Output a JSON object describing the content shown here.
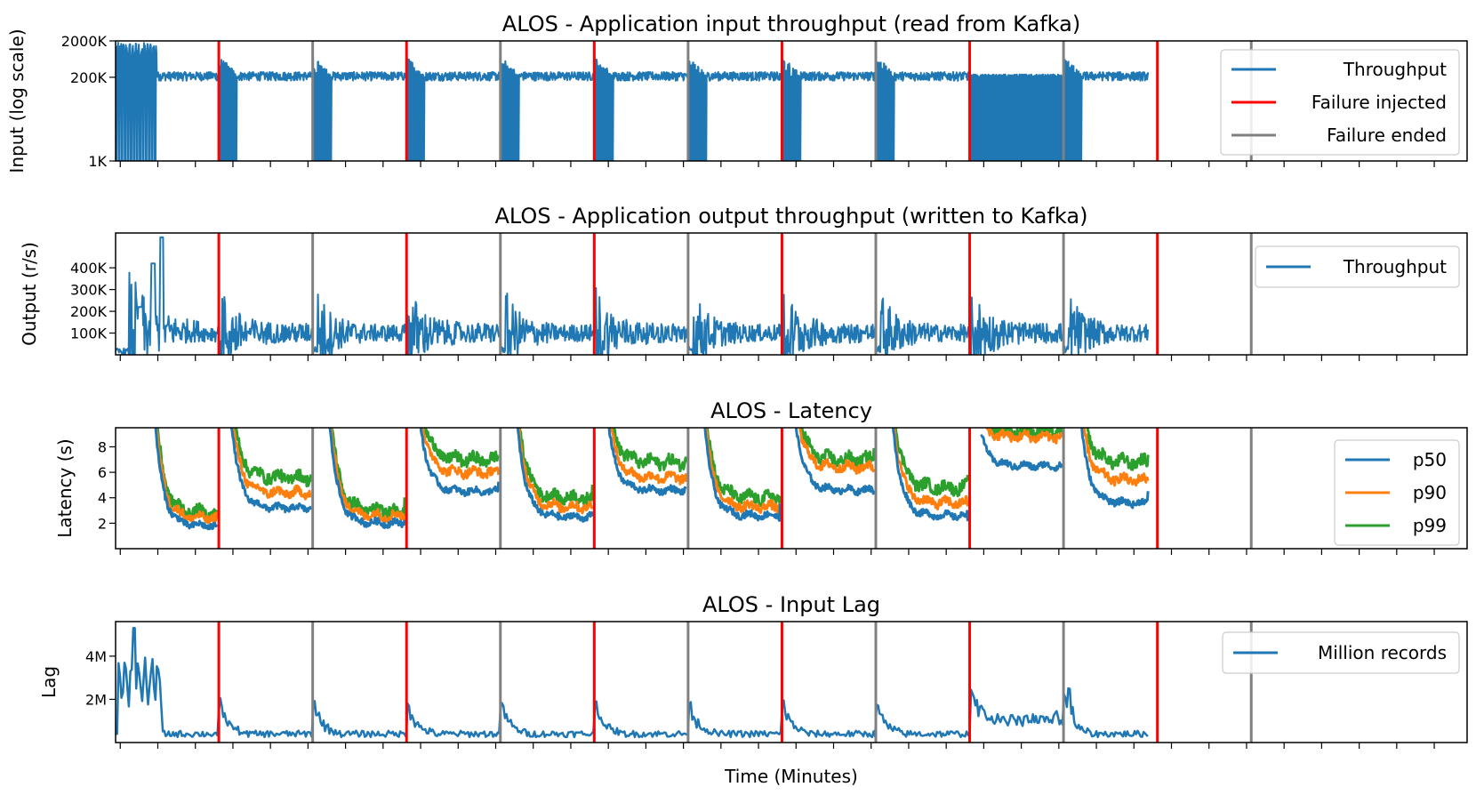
{
  "chart_data": [
    {
      "type": "line",
      "title": "ALOS - Application input throughput (read from Kafka)",
      "ylabel": "Input (log scale)",
      "yscale": "log",
      "ylim": [
        1000,
        2000000
      ],
      "xlim": [
        0,
        72
      ],
      "yticks": [
        {
          "v": 1000,
          "label": "1K"
        },
        {
          "v": 200000,
          "label": "200K"
        },
        {
          "v": 2000000,
          "label": "2000K"
        }
      ],
      "legend": [
        "Throughput",
        "Failure injected",
        "Failure ended"
      ],
      "legend_position": "upper-right",
      "series": [
        {
          "name": "Throughput",
          "kind": "input",
          "color": "#1f77b4"
        }
      ]
    },
    {
      "type": "line",
      "title": "ALOS - Application output throughput (written to Kafka)",
      "ylabel": "Output (r/s)",
      "ylim": [
        0,
        560000
      ],
      "xlim": [
        0,
        72
      ],
      "yticks": [
        {
          "v": 100000,
          "label": "100K"
        },
        {
          "v": 200000,
          "label": "200K"
        },
        {
          "v": 300000,
          "label": "300K"
        },
        {
          "v": 400000,
          "label": "400K"
        }
      ],
      "legend": [
        "Throughput"
      ],
      "legend_position": "upper-right",
      "series": [
        {
          "name": "Throughput",
          "kind": "output",
          "color": "#1f77b4"
        }
      ]
    },
    {
      "type": "line",
      "title": "ALOS - Latency",
      "ylabel": "Latency (s)",
      "ylim": [
        0,
        9.5
      ],
      "xlim": [
        0,
        72
      ],
      "yticks": [
        {
          "v": 2,
          "label": "2"
        },
        {
          "v": 4,
          "label": "4"
        },
        {
          "v": 6,
          "label": "6"
        },
        {
          "v": 8,
          "label": "8"
        }
      ],
      "legend": [
        "p50",
        "p90",
        "p99"
      ],
      "legend_position": "right",
      "series": [
        {
          "name": "p50",
          "kind": "lat",
          "color": "#1f77b4"
        },
        {
          "name": "p90",
          "kind": "lat",
          "color": "#ff7f0e"
        },
        {
          "name": "p99",
          "kind": "lat",
          "color": "#2ca02c"
        }
      ]
    },
    {
      "type": "line",
      "title": "ALOS - Input Lag",
      "ylabel": "Lag",
      "ylim": [
        0,
        5600000
      ],
      "xlim": [
        0,
        72
      ],
      "yticks": [
        {
          "v": 2000000,
          "label": "2M"
        },
        {
          "v": 4000000,
          "label": "4M"
        }
      ],
      "legend": [
        "Million records"
      ],
      "legend_position": "upper-right",
      "series": [
        {
          "name": "Million records",
          "kind": "lag",
          "color": "#1f77b4"
        }
      ]
    }
  ],
  "failure_injected_minutes": [
    5.5,
    15.5,
    25.5,
    35.5,
    45.5,
    55.5
  ],
  "failure_ended_minutes": [
    10.5,
    20.5,
    30.5,
    40.5,
    50.5,
    60.5
  ],
  "failure_injected_color": "#ff0000",
  "failure_ended_color": "#808080",
  "series_color": "#1f77b4",
  "xlabel": "Time (Minutes)",
  "latency_segments": [
    {
      "start": 2.0,
      "end": 5.4,
      "p50": [
        12,
        1.8
      ],
      "p90": [
        13,
        2.4
      ],
      "p99": [
        14,
        2.8
      ]
    },
    {
      "start": 6.1,
      "end": 10.4,
      "p50": [
        11,
        3.2
      ],
      "p90": [
        12,
        4.4
      ],
      "p99": [
        13,
        5.6
      ]
    },
    {
      "start": 11.3,
      "end": 15.4,
      "p50": [
        12,
        2.0
      ],
      "p90": [
        13,
        2.6
      ],
      "p99": [
        14,
        3.0
      ]
    },
    {
      "start": 16.1,
      "end": 20.4,
      "p50": [
        12,
        4.5
      ],
      "p90": [
        13,
        6.0
      ],
      "p99": [
        14,
        7.0
      ]
    },
    {
      "start": 21.3,
      "end": 25.4,
      "p50": [
        12,
        2.5
      ],
      "p90": [
        13,
        3.3
      ],
      "p99": [
        14,
        4.0
      ]
    },
    {
      "start": 26.1,
      "end": 30.4,
      "p50": [
        12,
        4.6
      ],
      "p90": [
        13,
        5.6
      ],
      "p99": [
        14,
        6.8
      ]
    },
    {
      "start": 31.3,
      "end": 35.4,
      "p50": [
        11,
        2.6
      ],
      "p90": [
        12,
        3.3
      ],
      "p99": [
        13,
        4.0
      ]
    },
    {
      "start": 36.1,
      "end": 40.4,
      "p50": [
        12,
        4.6
      ],
      "p90": [
        13,
        6.4
      ],
      "p99": [
        14,
        7.0
      ]
    },
    {
      "start": 41.3,
      "end": 45.4,
      "p50": [
        12,
        2.6
      ],
      "p90": [
        13,
        3.6
      ],
      "p99": [
        14,
        4.8
      ]
    },
    {
      "start": 46.1,
      "end": 50.4,
      "p50": [
        9,
        6.5
      ],
      "p90": [
        10,
        8.8
      ],
      "p99": [
        11,
        9.2
      ]
    },
    {
      "start": 51.3,
      "end": 55.0,
      "p50": [
        12,
        3.6
      ],
      "p90": [
        13,
        5.4
      ],
      "p99": [
        14,
        6.8
      ]
    }
  ]
}
